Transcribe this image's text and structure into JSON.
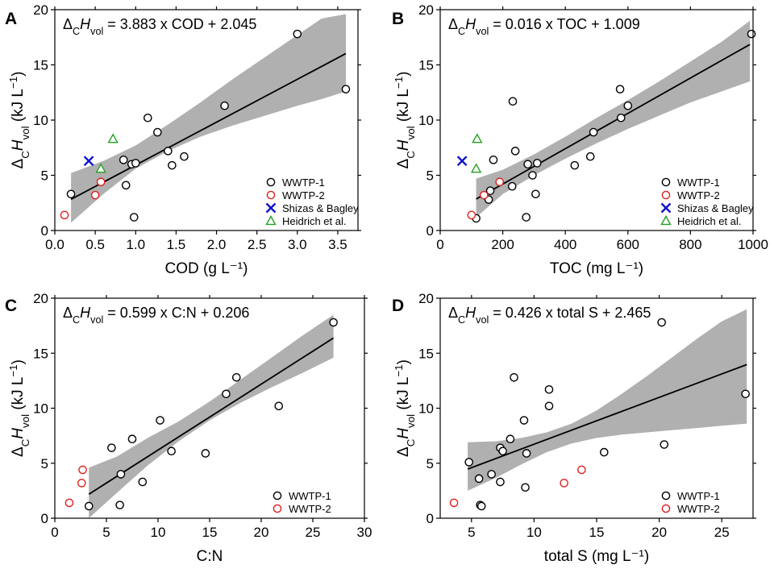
{
  "chart_data": [
    {
      "type": "scatter",
      "panel": "A",
      "equation": {
        "prefix": "Δ",
        "sub1": "C",
        "var": "H",
        "sub2": "vol",
        "rest": " = 3.883 x COD + 2.045"
      },
      "fit": {
        "slope": 3.883,
        "intercept": 2.045
      },
      "xlabel": "COD (g L⁻¹)",
      "ylabel": {
        "prefix": "Δ",
        "sub1": "C",
        "var": "H",
        "sub2": "vol",
        "rest": " (kJ L",
        "sup": "−1",
        "close": ")"
      },
      "xlim": [
        0,
        3.75
      ],
      "ylim": [
        0,
        20
      ],
      "xticks": [
        0,
        0.5,
        1,
        1.5,
        2,
        2.5,
        3,
        3.5
      ],
      "xtick_labels": [
        "0.0",
        "0.5",
        "1.0",
        "1.5",
        "2.0",
        "2.5",
        "3.0",
        "3.5"
      ],
      "yticks": [
        0,
        5,
        10,
        15,
        20
      ],
      "ytick_labels": [
        "0",
        "5",
        "10",
        "15",
        "20"
      ],
      "band": {
        "x": [
          0.2,
          0.6,
          1.0,
          1.4,
          1.8,
          2.2,
          2.6,
          3.0,
          3.3,
          3.6
        ],
        "lower": [
          0.7,
          3.3,
          5.6,
          7.2,
          8.5,
          9.5,
          10.4,
          11.3,
          11.9,
          12.6
        ],
        "upper": [
          5.2,
          6.3,
          7.7,
          9.6,
          11.6,
          13.7,
          15.7,
          17.7,
          19.2,
          19.6
        ]
      },
      "series": [
        {
          "name": "WWTP-1",
          "marker": "circle",
          "color": "#000000",
          "points": [
            [
              0.2,
              3.3
            ],
            [
              0.85,
              6.4
            ],
            [
              0.88,
              4.1
            ],
            [
              0.95,
              6.0
            ],
            [
              0.98,
              1.2
            ],
            [
              1.0,
              6.1
            ],
            [
              1.15,
              10.2
            ],
            [
              1.27,
              8.9
            ],
            [
              1.4,
              7.2
            ],
            [
              1.45,
              5.9
            ],
            [
              1.6,
              6.7
            ],
            [
              2.1,
              11.3
            ],
            [
              3.0,
              17.8
            ],
            [
              3.6,
              12.8
            ]
          ]
        },
        {
          "name": "WWTP-2",
          "marker": "circle",
          "color": "#e0201b",
          "points": [
            [
              0.12,
              1.4
            ],
            [
              0.5,
              3.2
            ],
            [
              0.57,
              4.4
            ]
          ]
        },
        {
          "name": "Shizas & Bagley",
          "marker": "x",
          "color": "#1010d0",
          "points": [
            [
              0.42,
              6.3
            ]
          ]
        },
        {
          "name": "Heidrich et al.",
          "marker": "triangle",
          "color": "#22a022",
          "points": [
            [
              0.57,
              5.6
            ],
            [
              0.72,
              8.3
            ]
          ]
        }
      ]
    },
    {
      "type": "scatter",
      "panel": "B",
      "equation": {
        "prefix": "Δ",
        "sub1": "C",
        "var": "H",
        "sub2": "vol",
        "rest": " = 0.016 x TOC + 1.009"
      },
      "fit": {
        "slope": 0.016,
        "intercept": 1.009
      },
      "xlabel": "TOC (mg L⁻¹)",
      "ylabel": {
        "prefix": "Δ",
        "sub1": "C",
        "var": "H",
        "sub2": "vol",
        "rest": " (kJ L",
        "sup": "−1",
        "close": ")"
      },
      "xlim": [
        0,
        1000
      ],
      "ylim": [
        0,
        20
      ],
      "xticks": [
        0,
        200,
        400,
        600,
        800,
        1000
      ],
      "xtick_labels": [
        "0",
        "200",
        "400",
        "600",
        "800",
        "1000"
      ],
      "yticks": [
        0,
        5,
        10,
        15,
        20
      ],
      "ytick_labels": [
        "0",
        "5",
        "10",
        "15",
        "20"
      ],
      "band": {
        "x": [
          115,
          200,
          300,
          400,
          500,
          600,
          700,
          800,
          900,
          990
        ],
        "lower": [
          1.2,
          3.3,
          5.0,
          6.5,
          7.9,
          9.2,
          10.4,
          11.6,
          12.6,
          13.5
        ],
        "upper": [
          4.7,
          5.5,
          6.9,
          8.5,
          10.2,
          11.8,
          13.5,
          15.3,
          17.1,
          19.0
        ]
      },
      "series": [
        {
          "name": "WWTP-1",
          "marker": "circle",
          "color": "#000000",
          "points": [
            [
              115,
              1.1
            ],
            [
              155,
              2.8
            ],
            [
              160,
              3.6
            ],
            [
              170,
              6.4
            ],
            [
              230,
              4.0
            ],
            [
              232,
              11.7
            ],
            [
              240,
              7.2
            ],
            [
              275,
              1.2
            ],
            [
              280,
              6.0
            ],
            [
              295,
              5.0
            ],
            [
              305,
              3.3
            ],
            [
              310,
              6.1
            ],
            [
              430,
              5.9
            ],
            [
              480,
              6.7
            ],
            [
              490,
              8.9
            ],
            [
              575,
              12.8
            ],
            [
              578,
              10.2
            ],
            [
              600,
              11.3
            ],
            [
              995,
              17.8
            ]
          ]
        },
        {
          "name": "WWTP-2",
          "marker": "circle",
          "color": "#e0201b",
          "points": [
            [
              100,
              1.4
            ],
            [
              140,
              3.2
            ],
            [
              190,
              4.4
            ]
          ]
        },
        {
          "name": "Shizas & Bagley",
          "marker": "x",
          "color": "#1010d0",
          "points": [
            [
              70,
              6.3
            ]
          ]
        },
        {
          "name": "Heidrich et al.",
          "marker": "triangle",
          "color": "#22a022",
          "points": [
            [
              115,
              5.6
            ],
            [
              118,
              8.3
            ]
          ]
        }
      ]
    },
    {
      "type": "scatter",
      "panel": "C",
      "equation": {
        "prefix": "Δ",
        "sub1": "C",
        "var": "H",
        "sub2": "vol",
        "rest": " = 0.599 x C:N + 0.206"
      },
      "fit": {
        "slope": 0.599,
        "intercept": 0.206
      },
      "xlabel": "C:N",
      "ylabel": {
        "prefix": "Δ",
        "sub1": "C",
        "var": "H",
        "sub2": "vol",
        "rest": " (kJ L",
        "sup": "−1",
        "close": ")"
      },
      "xlim": [
        0,
        30
      ],
      "ylim": [
        0,
        20
      ],
      "xticks": [
        0,
        5,
        10,
        15,
        20,
        25,
        30
      ],
      "xtick_labels": [
        "0",
        "5",
        "10",
        "15",
        "20",
        "25",
        "30"
      ],
      "yticks": [
        0,
        5,
        10,
        15,
        20
      ],
      "ytick_labels": [
        "0",
        "5",
        "10",
        "15",
        "20"
      ],
      "band": {
        "x": [
          3.3,
          6,
          9,
          12,
          15,
          18,
          21,
          24,
          27
        ],
        "lower": [
          0.0,
          2.3,
          4.8,
          7.0,
          8.9,
          10.5,
          11.9,
          13.2,
          14.6
        ],
        "upper": [
          4.6,
          5.6,
          7.3,
          8.8,
          10.6,
          12.6,
          14.6,
          16.6,
          18.5
        ]
      },
      "series": [
        {
          "name": "WWTP-1",
          "marker": "circle",
          "color": "#000000",
          "points": [
            [
              3.3,
              1.1
            ],
            [
              5.5,
              6.4
            ],
            [
              6.3,
              1.2
            ],
            [
              6.4,
              4.0
            ],
            [
              7.5,
              7.2
            ],
            [
              8.5,
              3.3
            ],
            [
              10.2,
              8.9
            ],
            [
              11.3,
              6.1
            ],
            [
              14.6,
              5.9
            ],
            [
              16.6,
              11.3
            ],
            [
              17.6,
              12.8
            ],
            [
              21.7,
              10.2
            ],
            [
              27.0,
              17.8
            ]
          ]
        },
        {
          "name": "WWTP-2",
          "marker": "circle",
          "color": "#e0201b",
          "points": [
            [
              1.4,
              1.4
            ],
            [
              2.6,
              3.2
            ],
            [
              2.7,
              4.4
            ]
          ]
        }
      ]
    },
    {
      "type": "scatter",
      "panel": "D",
      "equation": {
        "prefix": "Δ",
        "sub1": "C",
        "var": "H",
        "sub2": "vol",
        "rest": " = 0.426 x total S + 2.465"
      },
      "fit": {
        "slope": 0.426,
        "intercept": 2.465
      },
      "xlabel": "total S (mg L⁻¹)",
      "ylabel": {
        "prefix": "Δ",
        "sub1": "C",
        "var": "H",
        "sub2": "vol",
        "rest": " (kJ L",
        "sup": "−1",
        "close": ")"
      },
      "xlim": [
        2.5,
        27.5
      ],
      "ylim": [
        0,
        20
      ],
      "xticks": [
        5,
        10,
        15,
        20,
        25
      ],
      "xtick_labels": [
        "5",
        "10",
        "15",
        "20",
        "25"
      ],
      "yticks": [
        0,
        5,
        10,
        15,
        20
      ],
      "ytick_labels": [
        "0",
        "5",
        "10",
        "15",
        "20"
      ],
      "band": {
        "x": [
          4.7,
          7,
          9,
          11,
          13,
          15,
          17,
          19,
          21,
          23,
          25,
          27
        ],
        "lower": [
          2.5,
          3.7,
          4.9,
          6.0,
          6.8,
          7.3,
          7.6,
          7.8,
          8.0,
          8.2,
          8.4,
          8.6
        ],
        "upper": [
          6.9,
          7.0,
          7.3,
          7.8,
          8.6,
          9.8,
          11.3,
          12.9,
          14.6,
          16.3,
          17.9,
          19.0
        ]
      },
      "series": [
        {
          "name": "WWTP-1",
          "marker": "circle",
          "color": "#000000",
          "points": [
            [
              4.8,
              5.1
            ],
            [
              5.6,
              3.6
            ],
            [
              5.7,
              1.2
            ],
            [
              5.8,
              1.1
            ],
            [
              6.6,
              4.0
            ],
            [
              7.3,
              3.3
            ],
            [
              7.3,
              6.4
            ],
            [
              7.5,
              6.1
            ],
            [
              8.1,
              7.2
            ],
            [
              8.4,
              12.8
            ],
            [
              9.2,
              8.9
            ],
            [
              9.3,
              2.8
            ],
            [
              9.4,
              5.9
            ],
            [
              11.2,
              11.7
            ],
            [
              11.2,
              10.2
            ],
            [
              15.6,
              6.0
            ],
            [
              20.2,
              17.8
            ],
            [
              20.4,
              6.7
            ],
            [
              26.9,
              11.3
            ]
          ]
        },
        {
          "name": "WWTP-2",
          "marker": "circle",
          "color": "#e0201b",
          "points": [
            [
              3.6,
              1.4
            ],
            [
              12.4,
              3.2
            ],
            [
              13.8,
              4.4
            ]
          ]
        }
      ]
    }
  ]
}
